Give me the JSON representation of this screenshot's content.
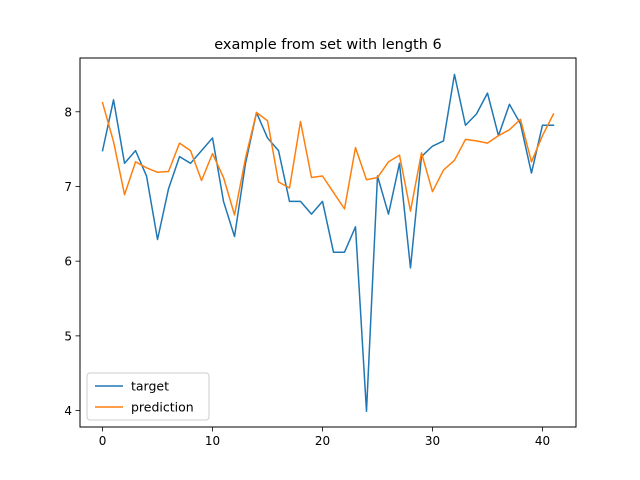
{
  "chart_data": {
    "type": "line",
    "title": "example from set with length 6",
    "xlabel": "",
    "ylabel": "",
    "xlim": [
      -2.05,
      43.05
    ],
    "ylim": [
      3.78,
      8.72
    ],
    "x_ticks": [
      0,
      10,
      20,
      30,
      40
    ],
    "y_ticks": [
      4,
      5,
      6,
      7,
      8
    ],
    "x": [
      0,
      1,
      2,
      3,
      4,
      5,
      6,
      7,
      8,
      9,
      10,
      11,
      12,
      13,
      14,
      15,
      16,
      17,
      18,
      19,
      20,
      21,
      22,
      23,
      24,
      25,
      26,
      27,
      28,
      29,
      30,
      31,
      32,
      33,
      34,
      35,
      36,
      37,
      38,
      39,
      40,
      41
    ],
    "series": [
      {
        "name": "target",
        "color": "#1f77b4",
        "values": [
          7.48,
          8.16,
          7.31,
          7.48,
          7.14,
          6.29,
          6.97,
          7.4,
          7.31,
          7.48,
          7.65,
          6.8,
          6.33,
          7.31,
          7.99,
          7.65,
          7.48,
          6.8,
          6.8,
          6.63,
          6.8,
          6.12,
          6.12,
          6.46,
          3.99,
          7.14,
          6.63,
          7.31,
          5.91,
          7.4,
          7.54,
          7.61,
          8.5,
          7.82,
          7.97,
          8.25,
          7.68,
          8.1,
          7.84,
          7.18,
          7.82,
          7.82
        ]
      },
      {
        "name": "prediction",
        "color": "#ff7f0e",
        "values": [
          8.12,
          7.6,
          6.89,
          7.33,
          7.25,
          7.19,
          7.2,
          7.58,
          7.48,
          7.08,
          7.44,
          7.12,
          6.62,
          7.38,
          7.99,
          7.88,
          7.06,
          6.98,
          7.87,
          7.12,
          7.14,
          6.92,
          6.7,
          7.52,
          7.09,
          7.12,
          7.33,
          7.42,
          6.67,
          7.45,
          6.93,
          7.22,
          7.35,
          7.63,
          7.61,
          7.58,
          7.68,
          7.76,
          7.9,
          7.33,
          7.68,
          7.97
        ]
      }
    ],
    "grid": false,
    "legend_position": "lower-left"
  }
}
